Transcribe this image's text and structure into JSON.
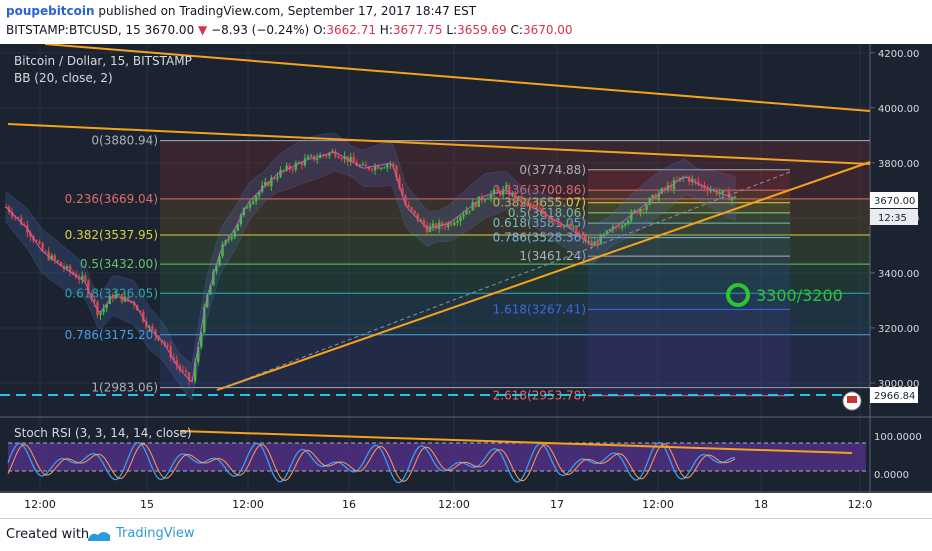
{
  "header": {
    "author": "poupebitcoin",
    "published": "published on TradingView.com, September 17, 2017 18:47 EST",
    "symbol_line": "BITSTAMP:BTCUSD, 15",
    "last": "3670.00",
    "change": "−8.93 (−0.24%)",
    "o_label": "O:",
    "o": "3662.71",
    "h_label": "H:",
    "h": "3677.75",
    "l_label": "L:",
    "l": "3659.69",
    "c_label": "C:",
    "c": "3670.00"
  },
  "chart": {
    "title": "Bitcoin / Dollar, 15, BITSTAMP",
    "indicator": "BB (20, close, 2)",
    "annotation": "3300/3200",
    "last_price_label": "3670.00",
    "countdown_label": "12:35",
    "dashed_price_label": "2966.84",
    "partial_axis_label": "36",
    "oscillator_title": "Stoch RSI (3, 3, 14, 14, close)"
  },
  "footer": {
    "created_with": "Created with",
    "brand": "TradingView"
  },
  "colors": {
    "background": "#1b2331",
    "up": "#3fbf3f",
    "down": "#e0473a",
    "trendline": "#f7a21b",
    "dashed_support": "#22c4ee",
    "annotation_green": "#2ec62e"
  },
  "chart_data": {
    "type": "candlestick",
    "title": "Bitcoin / Dollar, 15, BITSTAMP",
    "ylim": [
      2900,
      4260
    ],
    "y_ticks": [
      "4200.00",
      "4000.00",
      "3800.00",
      "3600.00",
      "3400.00",
      "3200.00",
      "3000.00"
    ],
    "x_ticks": [
      "12:00",
      "15",
      "12:00",
      "16",
      "12:00",
      "17",
      "12:00",
      "18",
      "12:0"
    ],
    "approx_path": [
      [
        0,
        3640
      ],
      [
        3,
        3560
      ],
      [
        5,
        3480
      ],
      [
        8,
        3420
      ],
      [
        11,
        3370
      ],
      [
        13,
        3250
      ],
      [
        15,
        3320
      ],
      [
        18,
        3290
      ],
      [
        20,
        3200
      ],
      [
        22,
        3150
      ],
      [
        24,
        3060
      ],
      [
        26,
        3000
      ],
      [
        28,
        3300
      ],
      [
        30,
        3480
      ],
      [
        32,
        3560
      ],
      [
        34,
        3660
      ],
      [
        38,
        3760
      ],
      [
        42,
        3810
      ],
      [
        46,
        3840
      ],
      [
        50,
        3780
      ],
      [
        54,
        3800
      ],
      [
        56,
        3640
      ],
      [
        59,
        3560
      ],
      [
        62,
        3580
      ],
      [
        64,
        3620
      ],
      [
        67,
        3680
      ],
      [
        70,
        3700
      ],
      [
        72,
        3660
      ],
      [
        75,
        3620
      ],
      [
        79,
        3560
      ],
      [
        82,
        3500
      ],
      [
        85,
        3560
      ],
      [
        88,
        3620
      ],
      [
        92,
        3700
      ],
      [
        95,
        3750
      ],
      [
        97,
        3720
      ],
      [
        100,
        3690
      ],
      [
        102,
        3670
      ]
    ],
    "fib_left": {
      "levels": [
        {
          "label": "0(3880.94)",
          "value": 3880.94
        },
        {
          "label": "0.236(3669.04)",
          "value": 3669.04
        },
        {
          "label": "0.382(3537.95)",
          "value": 3537.95
        },
        {
          "label": "0.5(3432.00)",
          "value": 3432.0
        },
        {
          "label": "0.618(3326.05)",
          "value": 3326.05
        },
        {
          "label": "0.786(3175.20)",
          "value": 3175.2
        },
        {
          "label": "1(2983.06)",
          "value": 2983.06
        }
      ]
    },
    "fib_right": {
      "levels": [
        {
          "label": "0(3774.88)",
          "value": 3774.88
        },
        {
          "label": "0.236(3700.86)",
          "value": 3700.86
        },
        {
          "label": "0.382(3655.07)",
          "value": 3655.07
        },
        {
          "label": "0.5(3618.06)",
          "value": 3618.06
        },
        {
          "label": "0.618(3581.05)",
          "value": 3581.05
        },
        {
          "label": "0.786(3528.36)",
          "value": 3528.36
        },
        {
          "label": "1(3461.24)",
          "value": 3461.24
        },
        {
          "label": "1.618(3267.41)",
          "value": 3267.41
        },
        {
          "label": "2.618(2953.78)",
          "value": 2953.78
        }
      ]
    },
    "dashed_level": 2966.84,
    "oscillator": {
      "name": "Stoch RSI (3, 3, 14, 14, close)",
      "y_ticks": [
        "100.0000",
        "0.0000"
      ],
      "bands": [
        80,
        20
      ]
    }
  }
}
